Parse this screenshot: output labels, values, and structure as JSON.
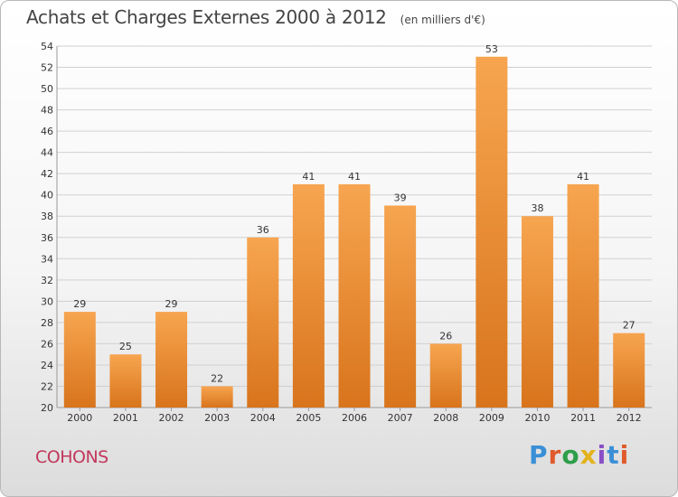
{
  "header": {
    "title": "Achats et Charges Externes 2000 à 2012",
    "unit": "(en milliers d'€)"
  },
  "footer": {
    "commune": "COHONS",
    "logo_text": "Proxiti",
    "logo_colors": [
      "#3a8fd6",
      "#e05a2b",
      "#2e9e4a",
      "#e3b21c",
      "#8a4fc7",
      "#3a8fd6",
      "#e05a2b"
    ]
  },
  "colors": {
    "bar_light": "#f7a550",
    "bar_dark": "#d8741c",
    "grid": "#d0d0d0"
  },
  "chart_data": {
    "type": "bar",
    "title": "Achats et Charges Externes 2000 à 2012",
    "subtitle": "(en milliers d'€)",
    "categories": [
      "2000",
      "2001",
      "2002",
      "2003",
      "2004",
      "2005",
      "2006",
      "2007",
      "2008",
      "2009",
      "2010",
      "2011",
      "2012"
    ],
    "values": [
      29,
      25,
      29,
      22,
      36,
      41,
      41,
      39,
      26,
      53,
      38,
      41,
      27
    ],
    "ylim": [
      20,
      54
    ],
    "yticks": [
      20,
      22,
      24,
      26,
      28,
      30,
      32,
      34,
      36,
      38,
      40,
      42,
      44,
      46,
      48,
      50,
      52,
      54
    ],
    "grid": true,
    "data_labels": true
  }
}
